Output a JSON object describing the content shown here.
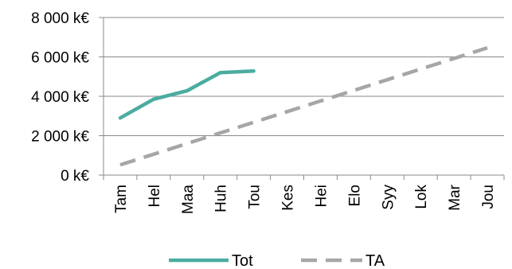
{
  "chart_data": {
    "type": "line",
    "categories": [
      "Tam",
      "Hel",
      "Maa",
      "Huh",
      "Tou",
      "Kes",
      "Hei",
      "Elo",
      "Syy",
      "Lok",
      "Mar",
      "Jou"
    ],
    "series": [
      {
        "name": "Tot",
        "color": "#4bacA0",
        "style": "solid",
        "values": [
          2900,
          3850,
          4280,
          5200,
          5280,
          null,
          null,
          null,
          null,
          null,
          null,
          null
        ]
      },
      {
        "name": "TA",
        "color": "#a6a6a6",
        "style": "dashed",
        "values": [
          520,
          1060,
          1600,
          2140,
          2680,
          3220,
          3760,
          4300,
          4840,
          5380,
          5920,
          6460
        ]
      }
    ],
    "y_ticks": [
      "0 k€",
      "2 000 k€",
      "4 000 k€",
      "6 000 k€",
      "8 000 k€"
    ],
    "ylim": [
      0,
      8000
    ],
    "grid": "horizontal",
    "legend_position": "bottom"
  }
}
